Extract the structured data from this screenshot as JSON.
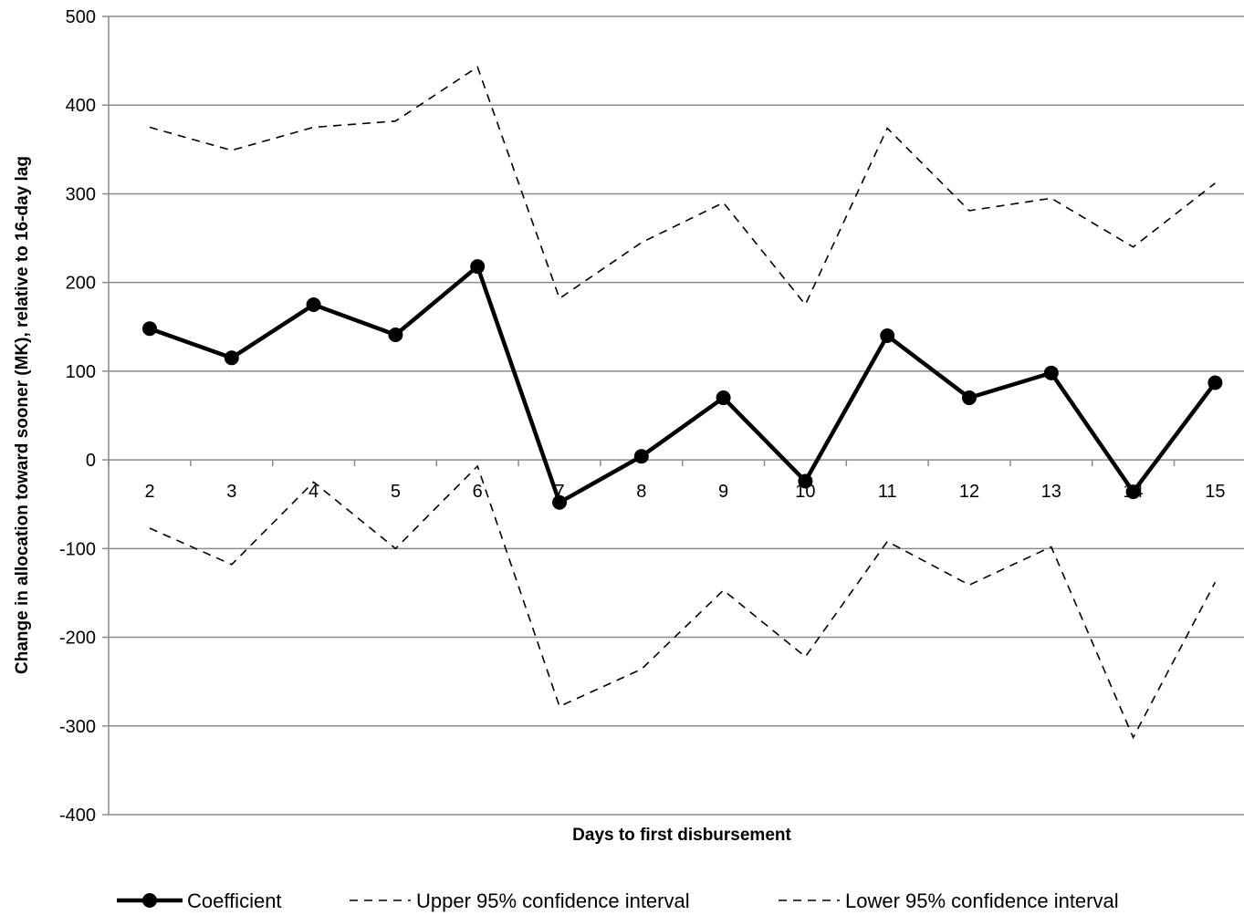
{
  "chart_data": {
    "type": "line",
    "title": "",
    "xlabel": "Days to first disbursement",
    "ylabel": "Change in allocation toward sooner (MK), relative to 16-day lag",
    "ylim": [
      -400,
      500
    ],
    "yticks": [
      500,
      400,
      300,
      200,
      100,
      0,
      -100,
      -200,
      -300,
      -400
    ],
    "grid": "horizontal",
    "legend_position": "bottom",
    "categories": [
      "2",
      "3",
      "4",
      "5",
      "6",
      "7",
      "8",
      "9",
      "10",
      "11",
      "12",
      "13",
      "14",
      "15"
    ],
    "series": [
      {
        "name": "Coefficient",
        "style": "solid-marker",
        "color": "#000000",
        "values": [
          148,
          115,
          175,
          141,
          218,
          -48,
          4,
          70,
          -24,
          140,
          70,
          98,
          -36,
          87
        ]
      },
      {
        "name": "Upper 95% confidence interval",
        "style": "dashed",
        "color": "#000000",
        "values": [
          375,
          349,
          375,
          382,
          443,
          182,
          245,
          290,
          175,
          374,
          281,
          295,
          240,
          312
        ]
      },
      {
        "name": "Lower 95% confidence interval",
        "style": "dashed",
        "color": "#000000",
        "values": [
          -77,
          -118,
          -25,
          -100,
          -7,
          -278,
          -236,
          -147,
          -222,
          -92,
          -141,
          -98,
          -313,
          -138
        ]
      }
    ]
  }
}
